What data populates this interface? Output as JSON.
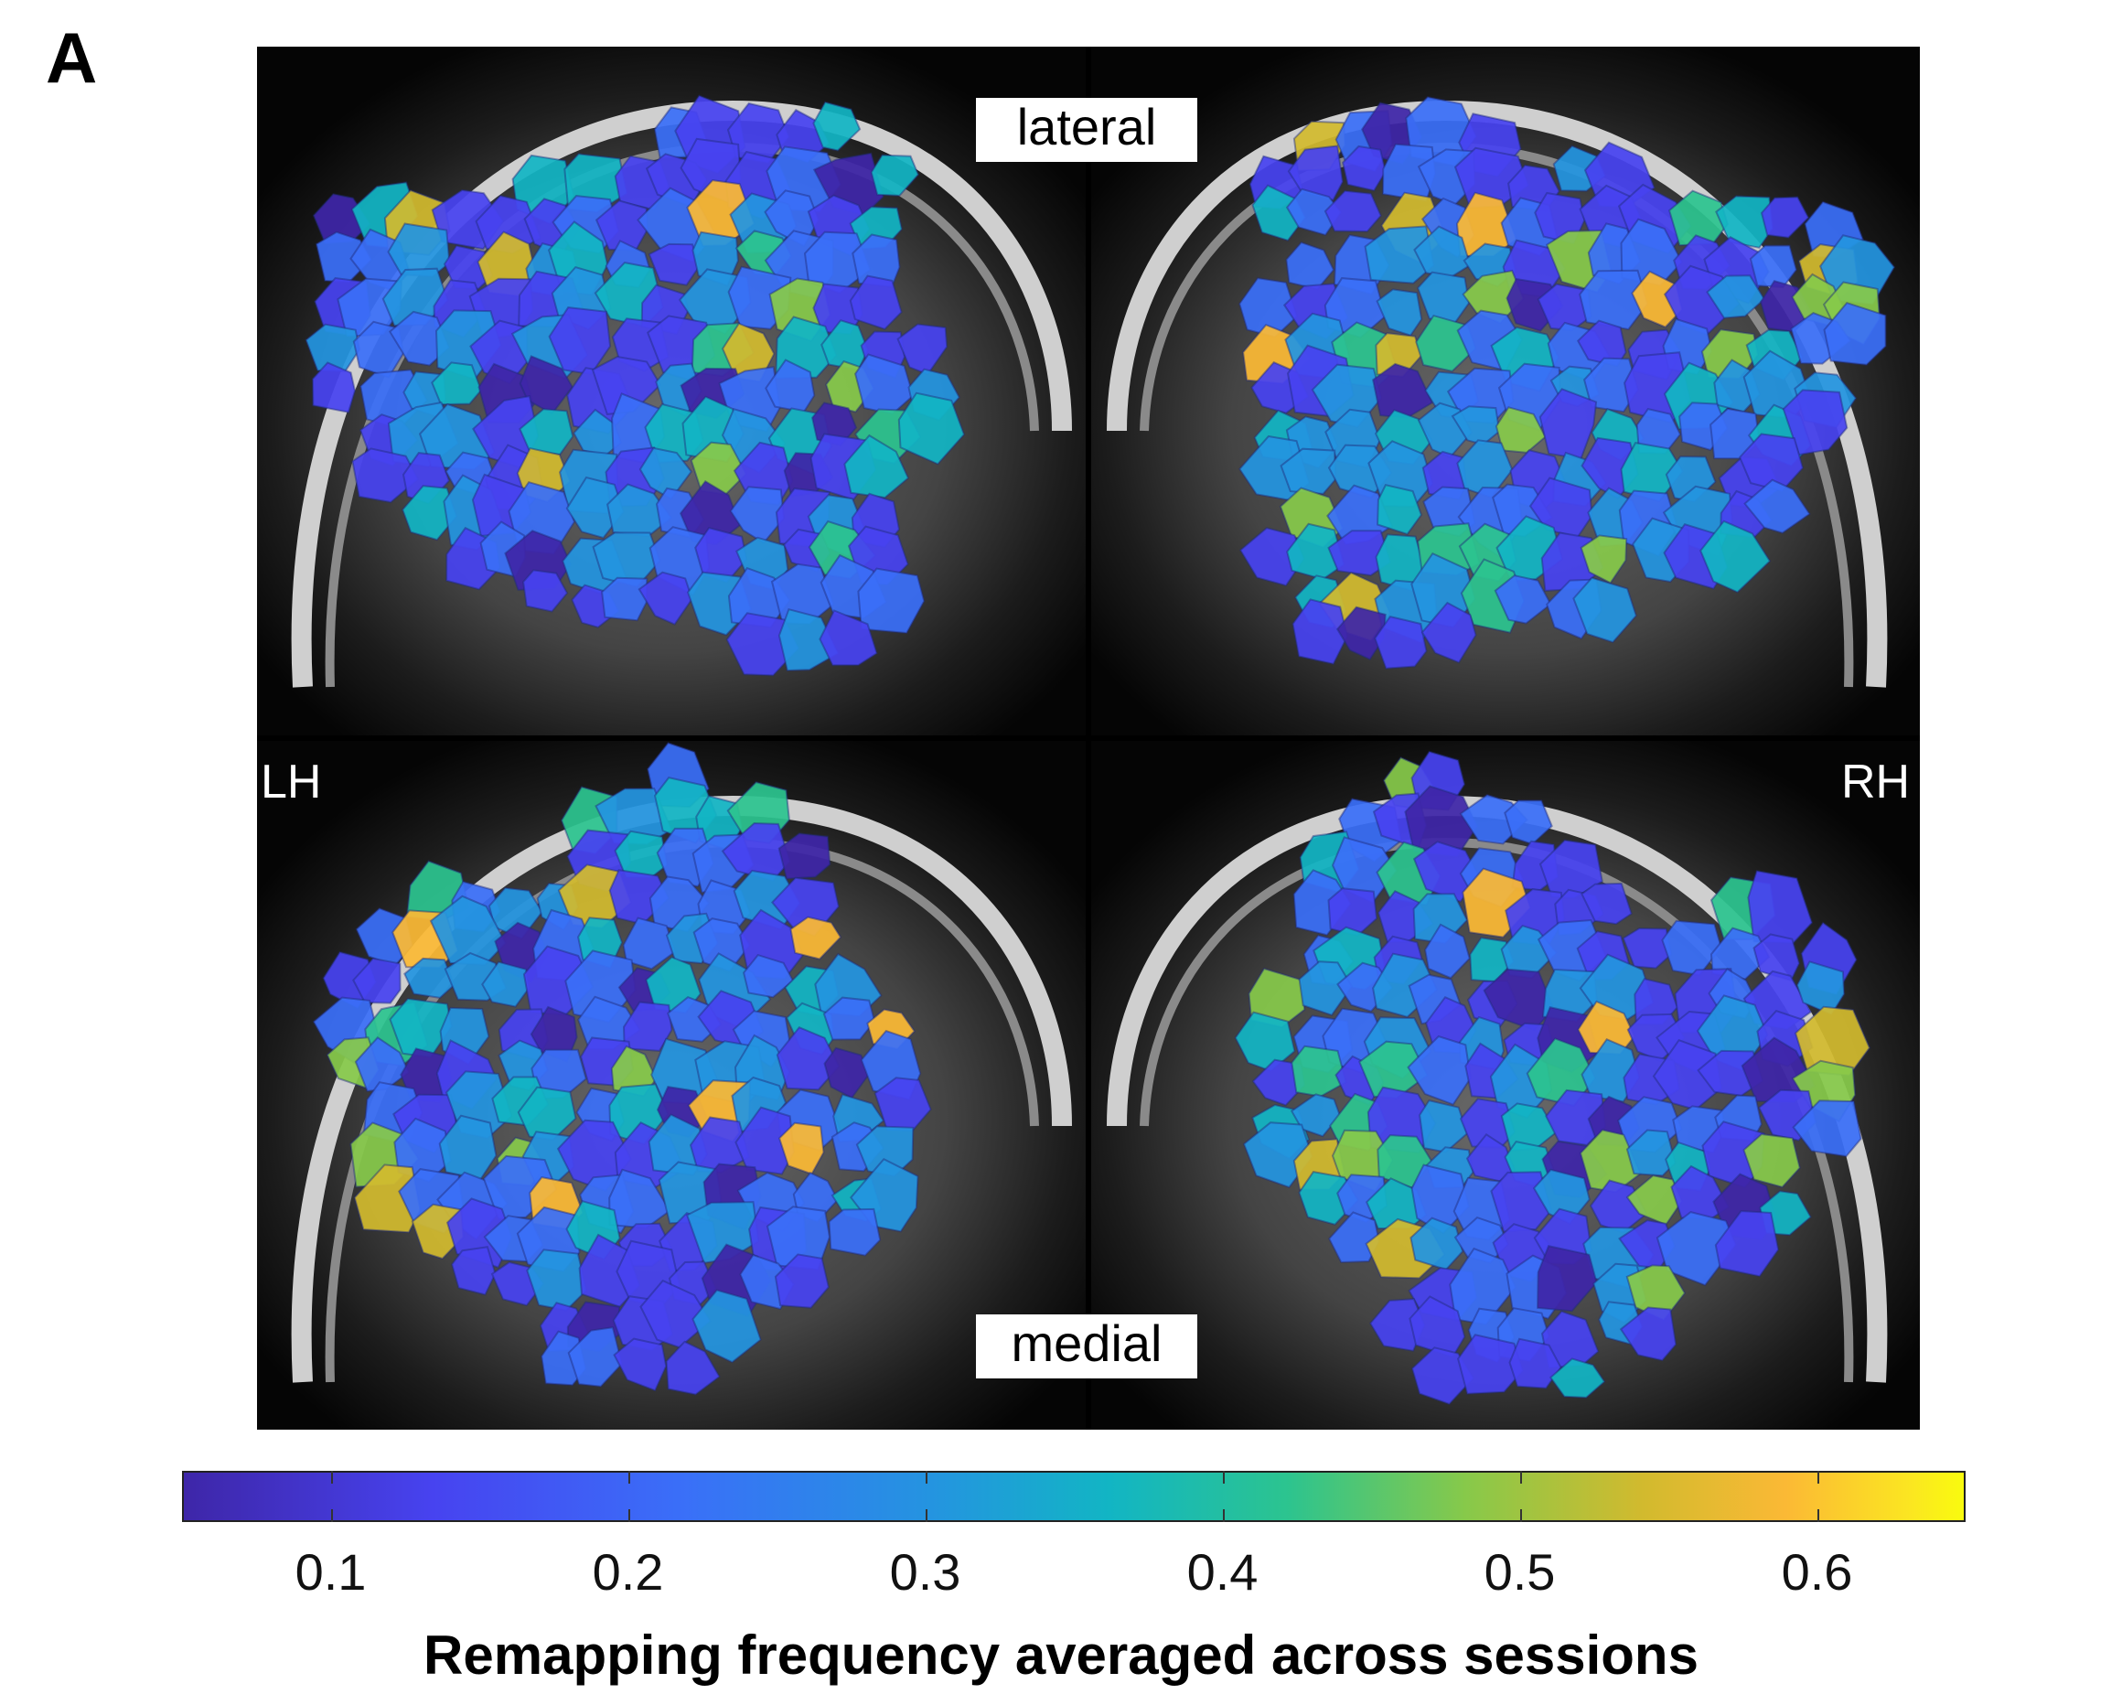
{
  "panel_letter": "A",
  "views": {
    "top": "lateral",
    "bottom": "medial"
  },
  "hemispheres": {
    "left": "LH",
    "right": "RH"
  },
  "colorbar": {
    "title": "Remapping frequency averaged across sessions",
    "ticks": [
      "0.1",
      "0.2",
      "0.3",
      "0.4",
      "0.5",
      "0.6"
    ],
    "range": [
      0.05,
      0.65
    ],
    "colormap": "parula",
    "colors": [
      "#3e26a8",
      "#4743f0",
      "#3a6ff8",
      "#2494e0",
      "#12b5c4",
      "#2cc48f",
      "#87c94a",
      "#d2ba2e",
      "#fbb935",
      "#f9fb0e"
    ]
  }
}
